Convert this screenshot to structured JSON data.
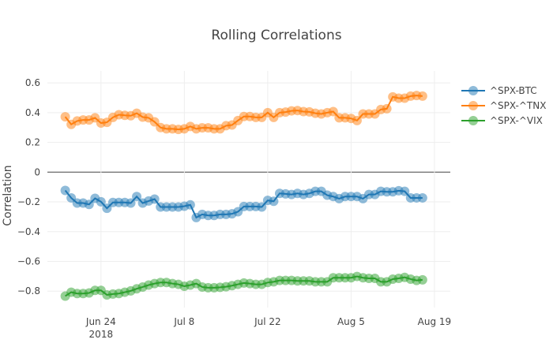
{
  "chart_data": {
    "type": "line",
    "title": "Rolling Correlations",
    "xlabel": "",
    "ylabel": "Correlation",
    "xlim": [
      "2018-06-15",
      "2018-08-21"
    ],
    "ylim": [
      -0.91,
      0.68
    ],
    "grid": true,
    "legend_position": "right",
    "x_ticks": [
      {
        "date": "2018-06-24",
        "label": "Jun 24",
        "sub": "2018"
      },
      {
        "date": "2018-07-08",
        "label": "Jul 8",
        "sub": ""
      },
      {
        "date": "2018-07-22",
        "label": "Jul 22",
        "sub": ""
      },
      {
        "date": "2018-08-05",
        "label": "Aug 5",
        "sub": ""
      },
      {
        "date": "2018-08-19",
        "label": "Aug 19",
        "sub": ""
      }
    ],
    "y_ticks": [
      0.6,
      0.4,
      0.2,
      0,
      -0.2,
      -0.4,
      -0.6,
      -0.8
    ],
    "y_tick_labels": [
      "0.6",
      "0.4",
      "0.2",
      "0",
      "−0.2",
      "−0.4",
      "−0.6",
      "−0.8"
    ],
    "x": [
      "2018-06-18",
      "2018-06-19",
      "2018-06-20",
      "2018-06-21",
      "2018-06-22",
      "2018-06-23",
      "2018-06-24",
      "2018-06-25",
      "2018-06-26",
      "2018-06-27",
      "2018-06-28",
      "2018-06-29",
      "2018-06-30",
      "2018-07-01",
      "2018-07-02",
      "2018-07-03",
      "2018-07-04",
      "2018-07-05",
      "2018-07-06",
      "2018-07-07",
      "2018-07-08",
      "2018-07-09",
      "2018-07-10",
      "2018-07-11",
      "2018-07-12",
      "2018-07-13",
      "2018-07-14",
      "2018-07-15",
      "2018-07-16",
      "2018-07-17",
      "2018-07-18",
      "2018-07-19",
      "2018-07-20",
      "2018-07-21",
      "2018-07-22",
      "2018-07-23",
      "2018-07-24",
      "2018-07-25",
      "2018-07-26",
      "2018-07-27",
      "2018-07-28",
      "2018-07-29",
      "2018-07-30",
      "2018-07-31",
      "2018-08-01",
      "2018-08-02",
      "2018-08-03",
      "2018-08-04",
      "2018-08-05",
      "2018-08-06",
      "2018-08-07",
      "2018-08-08",
      "2018-08-09",
      "2018-08-10",
      "2018-08-11",
      "2018-08-12",
      "2018-08-13",
      "2018-08-14",
      "2018-08-15",
      "2018-08-16",
      "2018-08-17"
    ],
    "series": [
      {
        "name": "^SPX-BTC",
        "color": "#1f77b4",
        "values": [
          -0.123,
          -0.173,
          -0.208,
          -0.208,
          -0.217,
          -0.176,
          -0.199,
          -0.243,
          -0.204,
          -0.204,
          -0.204,
          -0.208,
          -0.164,
          -0.208,
          -0.194,
          -0.181,
          -0.234,
          -0.234,
          -0.234,
          -0.234,
          -0.229,
          -0.22,
          -0.305,
          -0.284,
          -0.291,
          -0.291,
          -0.284,
          -0.284,
          -0.28,
          -0.266,
          -0.231,
          -0.231,
          -0.231,
          -0.234,
          -0.19,
          -0.196,
          -0.143,
          -0.146,
          -0.15,
          -0.143,
          -0.15,
          -0.143,
          -0.129,
          -0.129,
          -0.155,
          -0.164,
          -0.178,
          -0.164,
          -0.164,
          -0.164,
          -0.178,
          -0.15,
          -0.15,
          -0.129,
          -0.132,
          -0.132,
          -0.125,
          -0.129,
          -0.173,
          -0.173,
          -0.173
        ]
      },
      {
        "name": "^SPX-^TNX",
        "color": "#ff7f0e",
        "values": [
          0.372,
          0.321,
          0.344,
          0.351,
          0.351,
          0.365,
          0.33,
          0.335,
          0.368,
          0.386,
          0.382,
          0.379,
          0.396,
          0.37,
          0.365,
          0.338,
          0.3,
          0.291,
          0.291,
          0.287,
          0.291,
          0.307,
          0.291,
          0.298,
          0.298,
          0.291,
          0.291,
          0.312,
          0.317,
          0.347,
          0.374,
          0.374,
          0.368,
          0.368,
          0.4,
          0.368,
          0.4,
          0.404,
          0.412,
          0.414,
          0.407,
          0.405,
          0.396,
          0.391,
          0.4,
          0.407,
          0.365,
          0.365,
          0.361,
          0.347,
          0.391,
          0.391,
          0.391,
          0.421,
          0.426,
          0.506,
          0.497,
          0.497,
          0.511,
          0.515,
          0.511
        ]
      },
      {
        "name": "^SPX-^VIX",
        "color": "#2ca02c",
        "values": [
          -0.833,
          -0.807,
          -0.816,
          -0.816,
          -0.812,
          -0.795,
          -0.795,
          -0.825,
          -0.819,
          -0.816,
          -0.807,
          -0.798,
          -0.784,
          -0.772,
          -0.759,
          -0.749,
          -0.742,
          -0.742,
          -0.749,
          -0.754,
          -0.767,
          -0.759,
          -0.749,
          -0.772,
          -0.777,
          -0.777,
          -0.774,
          -0.77,
          -0.763,
          -0.754,
          -0.745,
          -0.749,
          -0.754,
          -0.754,
          -0.742,
          -0.737,
          -0.728,
          -0.728,
          -0.728,
          -0.731,
          -0.731,
          -0.731,
          -0.737,
          -0.737,
          -0.737,
          -0.71,
          -0.71,
          -0.71,
          -0.71,
          -0.701,
          -0.71,
          -0.714,
          -0.714,
          -0.737,
          -0.737,
          -0.719,
          -0.714,
          -0.707,
          -0.719,
          -0.728,
          -0.724
        ]
      }
    ]
  }
}
